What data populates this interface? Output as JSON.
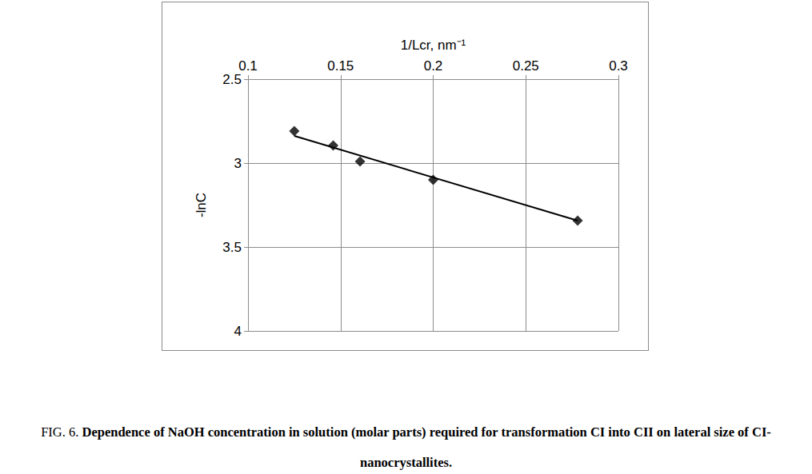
{
  "chart_data": {
    "type": "scatter",
    "figure_label": "FIG. 6.",
    "title": "Dependence of NaOH concentration in solution (molar parts) required for transformation CI into CII on lateral size of CI-nanocrystallites.",
    "x_label": "1/Lcr, nm⁻¹",
    "y_label": "-lnC",
    "series": [
      {
        "type": "scatter",
        "marker": "diamond",
        "color": "#000000",
        "x": [
          0.125,
          0.146,
          0.1605,
          0.2,
          0.278
        ],
        "values": [
          2.81,
          2.895,
          2.99,
          3.1,
          3.343
        ]
      },
      {
        "type": "line",
        "line_style": "solid",
        "color": "#000000",
        "x": [
          0.125,
          0.278
        ],
        "values": [
          2.838,
          3.343
        ]
      }
    ],
    "xlim": [
      0.1,
      0.3
    ],
    "xticks": [
      0.1,
      0.15,
      0.2,
      0.25,
      0.3
    ],
    "ylim": [
      2.5,
      4
    ],
    "yticks": [
      2.5,
      3,
      3.5,
      4
    ],
    "grid": true
  }
}
